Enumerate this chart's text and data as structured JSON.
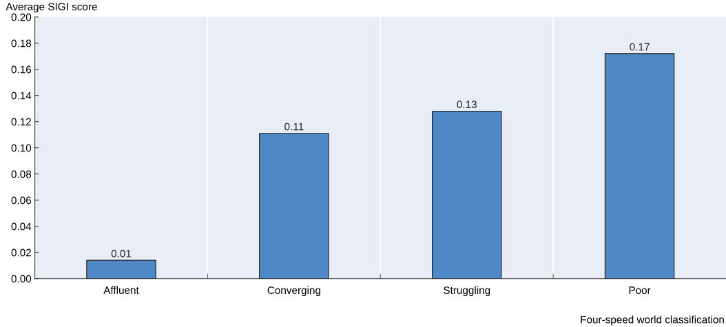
{
  "chart_data": {
    "type": "bar",
    "ylabel": "Average SIGI score",
    "xlabel": "Four-speed world classification",
    "categories": [
      "Affluent",
      "Converging",
      "Struggling",
      "Poor"
    ],
    "values": [
      0.014,
      0.111,
      0.128,
      0.172
    ],
    "color": "#4e88c7",
    "value_labels": [
      "0.01",
      "0.11",
      "0.13",
      "0.17"
    ],
    "ylim": [
      0,
      0.2
    ],
    "yticks": [
      {
        "value": 0,
        "label": "0.00"
      },
      {
        "value": 0.02,
        "label": "0.02"
      },
      {
        "value": 0.04,
        "label": "0.04"
      },
      {
        "value": 0.06,
        "label": "0.06"
      },
      {
        "value": 0.08,
        "label": "0.08"
      },
      {
        "value": 0.1,
        "label": "0.10"
      },
      {
        "value": 0.12,
        "label": "0.12"
      },
      {
        "value": 0.14,
        "label": "0.14"
      },
      {
        "value": 0.16,
        "label": "0.16"
      },
      {
        "value": 0.18,
        "label": "0.18"
      },
      {
        "value": 0.2,
        "label": "0.20"
      }
    ],
    "grid": "x"
  }
}
